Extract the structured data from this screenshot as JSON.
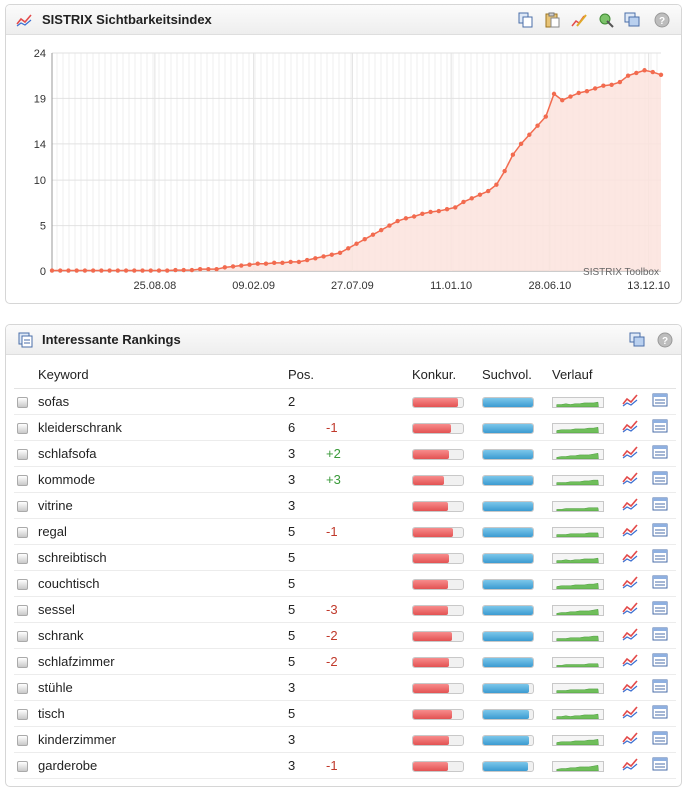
{
  "chart_panel": {
    "title": "SISTRIX Sichtbarkeitsindex",
    "icon": "trend-line-icon",
    "toolbar_icons": [
      "copy-icon",
      "clipboard-icon",
      "edit-chart-icon",
      "export-icon",
      "windows-icon",
      "help-icon"
    ],
    "watermark": "SISTRIX Toolbox"
  },
  "chart_data": {
    "type": "area",
    "title": "SISTRIX Sichtbarkeitsindex",
    "xlabel": "",
    "ylabel": "",
    "ylim": [
      0,
      24
    ],
    "yticks": [
      0,
      5,
      10,
      14,
      19,
      24
    ],
    "xtick_labels": [
      "25.08.08",
      "09.02.09",
      "27.07.09",
      "11.01.10",
      "28.06.10",
      "13.12.10"
    ],
    "x": [
      "2008-03-03",
      "2008-03-17",
      "2008-03-31",
      "2008-04-14",
      "2008-04-28",
      "2008-05-12",
      "2008-05-26",
      "2008-06-09",
      "2008-06-23",
      "2008-07-07",
      "2008-07-21",
      "2008-08-04",
      "2008-08-18",
      "2008-09-01",
      "2008-09-15",
      "2008-09-29",
      "2008-10-13",
      "2008-10-27",
      "2008-11-10",
      "2008-11-24",
      "2008-12-08",
      "2008-12-22",
      "2009-01-05",
      "2009-01-19",
      "2009-02-02",
      "2009-02-16",
      "2009-03-02",
      "2009-03-16",
      "2009-03-30",
      "2009-04-13",
      "2009-04-27",
      "2009-05-11",
      "2009-05-25",
      "2009-06-08",
      "2009-06-22",
      "2009-07-06",
      "2009-07-20",
      "2009-08-03",
      "2009-08-17",
      "2009-08-31",
      "2009-09-14",
      "2009-09-28",
      "2009-10-12",
      "2009-10-26",
      "2009-11-09",
      "2009-11-23",
      "2009-12-07",
      "2009-12-21",
      "2010-01-04",
      "2010-01-18",
      "2010-02-01",
      "2010-02-15",
      "2010-03-01",
      "2010-03-15",
      "2010-03-29",
      "2010-04-12",
      "2010-04-26",
      "2010-05-10",
      "2010-05-24",
      "2010-06-07",
      "2010-06-21",
      "2010-07-05",
      "2010-07-19",
      "2010-08-02",
      "2010-08-16",
      "2010-08-30",
      "2010-09-13",
      "2010-09-27",
      "2010-10-11",
      "2010-10-25",
      "2010-11-08",
      "2010-11-22",
      "2010-12-06",
      "2010-12-20",
      "2011-01-03"
    ],
    "series": [
      {
        "values": [
          0.05,
          0.05,
          0.05,
          0.05,
          0.05,
          0.05,
          0.05,
          0.05,
          0.05,
          0.05,
          0.05,
          0.05,
          0.05,
          0.05,
          0.05,
          0.1,
          0.1,
          0.1,
          0.2,
          0.2,
          0.2,
          0.4,
          0.5,
          0.6,
          0.7,
          0.8,
          0.8,
          0.9,
          0.9,
          1.0,
          1.0,
          1.2,
          1.4,
          1.6,
          1.8,
          2.0,
          2.5,
          3.0,
          3.5,
          4.0,
          4.5,
          5.0,
          5.5,
          5.8,
          6.0,
          6.3,
          6.5,
          6.6,
          6.8,
          7.0,
          7.6,
          8.0,
          8.4,
          8.8,
          9.5,
          11.0,
          12.8,
          14.0,
          15.0,
          16.0,
          17.0,
          19.5,
          18.8,
          19.2,
          19.6,
          19.8,
          20.1,
          20.4,
          20.5,
          20.8,
          21.5,
          21.8,
          22.1,
          21.9,
          21.6
        ]
      }
    ],
    "colors": {
      "line": "#f26b4f",
      "fill": "#fbe3dd",
      "grid": "#e2e2e2"
    },
    "grid": true
  },
  "rankings_panel": {
    "title": "Interessante Rankings",
    "icon": "document-icon",
    "toolbar_icons": [
      "windows-icon",
      "help-icon"
    ],
    "columns": {
      "keyword": "Keyword",
      "position": "Pos.",
      "competition": "Konkur.",
      "search_volume": "Suchvol.",
      "history": "Verlauf"
    },
    "rows": [
      {
        "keyword": "sofas",
        "position": "2",
        "change": "",
        "competition": 0.9,
        "search_volume": 1.0
      },
      {
        "keyword": "kleiderschrank",
        "position": "6",
        "change": "-1",
        "competition": 0.75,
        "search_volume": 1.0
      },
      {
        "keyword": "schlafsofa",
        "position": "3",
        "change": "+2",
        "competition": 0.72,
        "search_volume": 1.0
      },
      {
        "keyword": "kommode",
        "position": "3",
        "change": "+3",
        "competition": 0.62,
        "search_volume": 1.0
      },
      {
        "keyword": "vitrine",
        "position": "3",
        "change": "",
        "competition": 0.7,
        "search_volume": 1.0
      },
      {
        "keyword": "regal",
        "position": "5",
        "change": "-1",
        "competition": 0.8,
        "search_volume": 1.0
      },
      {
        "keyword": "schreibtisch",
        "position": "5",
        "change": "",
        "competition": 0.72,
        "search_volume": 1.0
      },
      {
        "keyword": "couchtisch",
        "position": "5",
        "change": "",
        "competition": 0.7,
        "search_volume": 1.0
      },
      {
        "keyword": "sessel",
        "position": "5",
        "change": "-3",
        "competition": 0.7,
        "search_volume": 1.0
      },
      {
        "keyword": "schrank",
        "position": "5",
        "change": "-2",
        "competition": 0.78,
        "search_volume": 1.0
      },
      {
        "keyword": "schlafzimmer",
        "position": "5",
        "change": "-2",
        "competition": 0.72,
        "search_volume": 1.0
      },
      {
        "keyword": "stühle",
        "position": "3",
        "change": "",
        "competition": 0.72,
        "search_volume": 0.92
      },
      {
        "keyword": "tisch",
        "position": "5",
        "change": "",
        "competition": 0.78,
        "search_volume": 0.92
      },
      {
        "keyword": "kinderzimmer",
        "position": "3",
        "change": "",
        "competition": 0.72,
        "search_volume": 0.92
      },
      {
        "keyword": "garderobe",
        "position": "3",
        "change": "-1",
        "competition": 0.7,
        "search_volume": 0.9
      }
    ],
    "colors": {
      "positive": "#3a9a3a",
      "negative": "#c0392b"
    }
  }
}
